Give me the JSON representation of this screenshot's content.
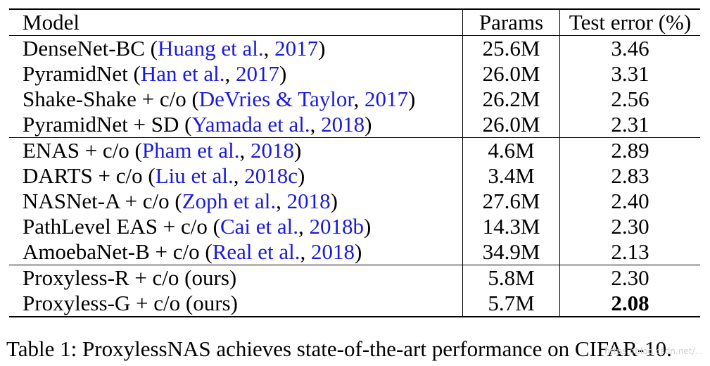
{
  "table": {
    "headers": {
      "model": "Model",
      "params": "Params",
      "error": "Test error (%)"
    },
    "rows": [
      {
        "model": "DenseNet-BC (",
        "cite_a": "Huang et al.",
        "sep": ", ",
        "cite_b": "2017",
        "close": ")",
        "params": "25.6M",
        "error": "3.46"
      },
      {
        "model": "PyramidNet (",
        "cite_a": "Han et al.",
        "sep": ", ",
        "cite_b": "2017",
        "close": ")",
        "params": "26.0M",
        "error": "3.31"
      },
      {
        "model": "Shake-Shake + c/o (",
        "cite_a": "DeVries & Taylor",
        "sep": ", ",
        "cite_b": "2017",
        "close": ")",
        "params": "26.2M",
        "error": "2.56"
      },
      {
        "model": "PyramidNet + SD (",
        "cite_a": "Yamada et al.",
        "sep": ", ",
        "cite_b": "2018",
        "close": ")",
        "params": "26.0M",
        "error": "2.31"
      },
      {
        "model": "ENAS + c/o (",
        "cite_a": "Pham et al.",
        "sep": ", ",
        "cite_b": "2018",
        "close": ")",
        "params": "4.6M",
        "error": "2.89"
      },
      {
        "model": "DARTS + c/o (",
        "cite_a": "Liu et al.",
        "sep": ", ",
        "cite_b": "2018c",
        "close": ")",
        "params": "3.4M",
        "error": "2.83"
      },
      {
        "model": "NASNet-A + c/o (",
        "cite_a": "Zoph et al.",
        "sep": ", ",
        "cite_b": "2018",
        "close": ")",
        "params": "27.6M",
        "error": "2.40"
      },
      {
        "model": "PathLevel EAS + c/o (",
        "cite_a": "Cai et al.",
        "sep": ", ",
        "cite_b": "2018b",
        "close": ")",
        "params": "14.3M",
        "error": "2.30"
      },
      {
        "model": "AmoebaNet-B + c/o (",
        "cite_a": "Real et al.",
        "sep": ", ",
        "cite_b": "2018",
        "close": ")",
        "params": "34.9M",
        "error": "2.13"
      },
      {
        "model": "Proxyless-R + c/o (ours)",
        "params": "5.8M",
        "error": "2.30"
      },
      {
        "model": "Proxyless-G + c/o (ours)",
        "params": "5.7M",
        "error": "2.08"
      }
    ]
  },
  "caption": "Table 1: ProxylessNAS achieves state-of-the-art performance on CIFAR-10.",
  "watermark": "https://blog.csdn.net/...",
  "colors": {
    "citation": "#1a1adb",
    "text": "#000000",
    "background": "#ffffff"
  }
}
